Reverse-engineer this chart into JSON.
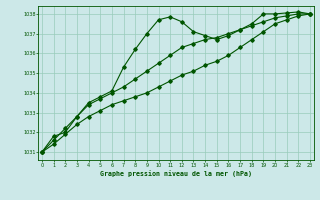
{
  "title": "Graphe pression niveau de la mer (hPa)",
  "bg_color": "#cce8e8",
  "grid_color": "#99ccbb",
  "line_color": "#005500",
  "x_values": [
    0,
    1,
    2,
    3,
    4,
    5,
    6,
    7,
    8,
    9,
    10,
    11,
    12,
    13,
    14,
    15,
    16,
    17,
    18,
    19,
    20,
    21,
    22,
    23
  ],
  "line1": [
    1031.0,
    1031.8,
    1032.0,
    1032.8,
    1033.5,
    1033.8,
    1034.1,
    1035.3,
    1036.2,
    1037.0,
    1037.7,
    1037.85,
    1037.6,
    1037.1,
    1036.9,
    1036.7,
    1036.9,
    1037.2,
    1037.5,
    1038.0,
    1038.0,
    1038.05,
    1038.1,
    1038.0
  ],
  "line2": [
    1031.0,
    1031.6,
    1032.2,
    1032.8,
    1033.4,
    1033.7,
    1034.0,
    1034.3,
    1034.7,
    1035.1,
    1035.5,
    1035.9,
    1036.3,
    1036.5,
    1036.7,
    1036.8,
    1037.0,
    1037.2,
    1037.4,
    1037.6,
    1037.8,
    1037.9,
    1038.0,
    1038.0
  ],
  "line3": [
    1031.0,
    1031.4,
    1031.9,
    1032.4,
    1032.8,
    1033.1,
    1033.4,
    1033.6,
    1033.8,
    1034.0,
    1034.3,
    1034.6,
    1034.9,
    1035.1,
    1035.4,
    1035.6,
    1035.9,
    1036.3,
    1036.7,
    1037.1,
    1037.5,
    1037.7,
    1037.9,
    1038.0
  ],
  "ylim": [
    1030.6,
    1038.4
  ],
  "yticks": [
    1031,
    1032,
    1033,
    1034,
    1035,
    1036,
    1037,
    1038
  ],
  "xlim": [
    -0.3,
    23.3
  ],
  "xticks": [
    0,
    1,
    2,
    3,
    4,
    5,
    6,
    7,
    8,
    9,
    10,
    11,
    12,
    13,
    14,
    15,
    16,
    17,
    18,
    19,
    20,
    21,
    22,
    23
  ]
}
